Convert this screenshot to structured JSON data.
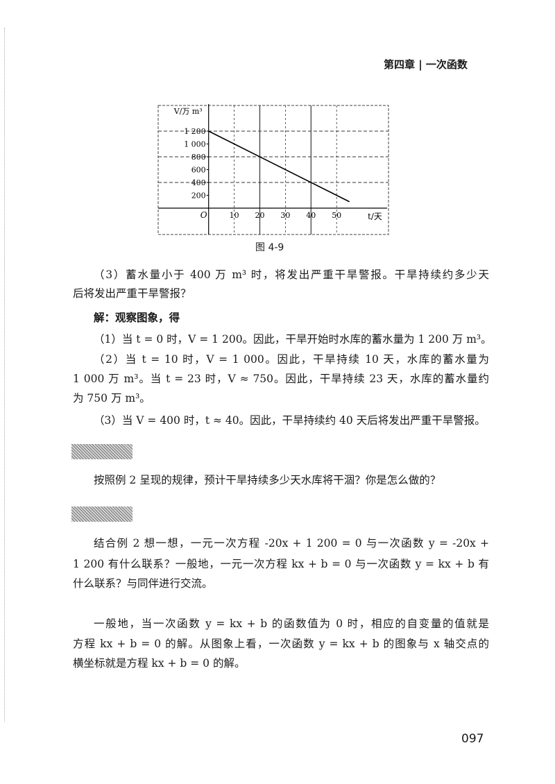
{
  "header": {
    "chapter": "第四章 | 一次函数"
  },
  "figure": {
    "caption": "图 4-9"
  },
  "chart_data": {
    "type": "line",
    "xlabel": "t/天",
    "ylabel": "V/万 m³",
    "origin_label": "O",
    "x_ticks": [
      10,
      20,
      30,
      40,
      50
    ],
    "y_ticks": [
      200,
      400,
      600,
      800,
      1000,
      1200
    ],
    "y_tick_labels": [
      "200",
      "400",
      "600",
      "800",
      "1 000",
      "1 200"
    ],
    "xlim": [
      0,
      55
    ],
    "ylim": [
      0,
      1200
    ],
    "grid": true,
    "series": [
      {
        "x": [
          0,
          55
        ],
        "y": [
          1200,
          100
        ]
      }
    ]
  },
  "body": {
    "lines": [
      "（3）蓄水量小于 400 万 m³ 时，将发出严重干旱警报。干旱持续约多少天",
      "后将发出严重干旱警报？",
      "解：观察图象，得",
      "（1）当 t = 0 时，V = 1 200。因此，干旱开始时水库的蓄水量为 1 200 万 m³。",
      "（2）当 t = 10 时，V = 1 000。因此，干旱持续 10 天，水库的蓄水量为",
      "1 000 万 m³。当 t = 23 时，V ≈ 750。因此，干旱持续 23 天，水库的蓄水量约",
      "为 750 万 m³。",
      "（3）当 V = 400 时，t ≈ 40。因此，干旱持续约 40 天后将发出严重干旱警报。",
      "按照例 2 呈现的规律，预计干旱持续多少天水库将干涸？你是怎么做的？",
      "结合例 2 想一想，一元一次方程 -20x + 1 200 = 0 与一次函数 y = -20x +",
      "1 200 有什么联系？一般地，一元一次方程 kx + b = 0 与一次函数 y = kx + b 有",
      "什么联系？与同伴进行交流。",
      "一般地，当一次函数 y = kx + b 的函数值为 0 时，相应的自变量的值就是",
      "方程 kx + b = 0 的解。从图象上看，一次函数 y = kx + b 的图象与 x 轴交点的",
      "横坐标就是方程 kx + b = 0 的解。"
    ]
  },
  "page_number": "097"
}
